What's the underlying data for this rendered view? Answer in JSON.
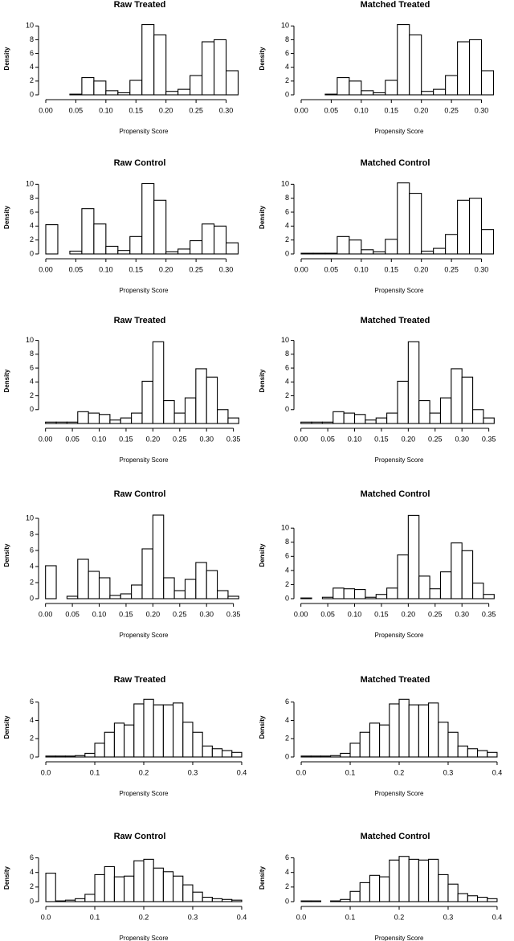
{
  "chart_data": [
    {
      "type": "histogram",
      "title": "Raw Treated",
      "xlabel": "Propensity Score",
      "ylabel": "Density",
      "bins": [
        0,
        0.02,
        0.04,
        0.06,
        0.08,
        0.1,
        0.12,
        0.14,
        0.16,
        0.18,
        0.2,
        0.22,
        0.24,
        0.26,
        0.28,
        0.3,
        0.32
      ],
      "values": [
        0,
        0,
        0.1,
        2.5,
        2,
        0.6,
        0.3,
        2.1,
        10.2,
        8.7,
        0.5,
        0.8,
        2.8,
        7.7,
        8,
        3.5
      ],
      "xlim": [
        -0.004,
        0.33
      ],
      "ylim": [
        0,
        10.5
      ],
      "xticks": [
        {
          "value": 0,
          "label": "0.00"
        },
        0.05,
        {
          "value": 0.1,
          "label": "0.10"
        },
        0.15,
        {
          "value": 0.2,
          "label": "0.20"
        },
        0.25,
        {
          "value": 0.3,
          "label": "0.30"
        }
      ],
      "yticks": [
        0,
        2,
        4,
        6,
        8,
        10
      ]
    },
    {
      "type": "histogram",
      "title": "Matched Treated",
      "xlabel": "Propensity Score",
      "ylabel": "Density",
      "bins": [
        0,
        0.02,
        0.04,
        0.06,
        0.08,
        0.1,
        0.12,
        0.14,
        0.16,
        0.18,
        0.2,
        0.22,
        0.24,
        0.26,
        0.28,
        0.3,
        0.32
      ],
      "values": [
        0,
        0,
        0.1,
        2.5,
        2,
        0.6,
        0.3,
        2.1,
        10.2,
        8.7,
        0.5,
        0.8,
        2.8,
        7.7,
        8,
        3.5
      ],
      "xlim": [
        -0.004,
        0.33
      ],
      "ylim": [
        0,
        10.5
      ],
      "xticks": [
        {
          "value": 0,
          "label": "0.00"
        },
        0.05,
        {
          "value": 0.1,
          "label": "0.10"
        },
        0.15,
        {
          "value": 0.2,
          "label": "0.20"
        },
        0.25,
        {
          "value": 0.3,
          "label": "0.30"
        }
      ],
      "yticks": [
        0,
        2,
        4,
        6,
        8,
        10
      ]
    },
    {
      "type": "histogram",
      "title": "Raw Control",
      "xlabel": "Propensity Score",
      "ylabel": "Density",
      "bins": [
        0,
        0.02,
        0.04,
        0.06,
        0.08,
        0.1,
        0.12,
        0.14,
        0.16,
        0.18,
        0.2,
        0.22,
        0.24,
        0.26,
        0.28,
        0.3,
        0.32
      ],
      "values": [
        4.2,
        0,
        0.4,
        6.5,
        4.3,
        1.1,
        0.5,
        2.5,
        10.1,
        7.7,
        0.3,
        0.7,
        1.9,
        4.3,
        4,
        1.6
      ],
      "xlim": [
        -0.004,
        0.33
      ],
      "ylim": [
        0,
        10.5
      ],
      "xticks": [
        {
          "value": 0,
          "label": "0.00"
        },
        0.05,
        {
          "value": 0.1,
          "label": "0.10"
        },
        0.15,
        {
          "value": 0.2,
          "label": "0.20"
        },
        0.25,
        {
          "value": 0.3,
          "label": "0.30"
        }
      ],
      "yticks": [
        0,
        2,
        4,
        6,
        8,
        10
      ]
    },
    {
      "type": "histogram",
      "title": "Matched Control",
      "xlabel": "Propensity Score",
      "ylabel": "Density",
      "bins": [
        0,
        0.02,
        0.04,
        0.06,
        0.08,
        0.1,
        0.12,
        0.14,
        0.16,
        0.18,
        0.2,
        0.22,
        0.24,
        0.26,
        0.28,
        0.3,
        0.32
      ],
      "values": [
        0.1,
        0.1,
        0.1,
        2.5,
        2,
        0.6,
        0.3,
        2.1,
        10.2,
        8.7,
        0.4,
        0.8,
        2.8,
        7.7,
        8,
        3.5
      ],
      "xlim": [
        -0.004,
        0.33
      ],
      "ylim": [
        0,
        10.5
      ],
      "xticks": [
        {
          "value": 0,
          "label": "0.00"
        },
        0.05,
        {
          "value": 0.1,
          "label": "0.10"
        },
        0.15,
        {
          "value": 0.2,
          "label": "0.20"
        },
        0.25,
        {
          "value": 0.3,
          "label": "0.30"
        }
      ],
      "yticks": [
        0,
        2,
        4,
        6,
        8,
        10
      ]
    },
    {
      "type": "histogram",
      "title": "Raw Treated",
      "xlabel": "Propensity Score",
      "ylabel": "Density",
      "bins": [
        0,
        0.02,
        0.04,
        0.06,
        0.08,
        0.1,
        0.12,
        0.14,
        0.16,
        0.18,
        0.2,
        0.22,
        0.24,
        0.26,
        0.28,
        0.3,
        0.32,
        0.34,
        0.36
      ],
      "values": [
        -1.8,
        -1.8,
        -1.8,
        -0.3,
        -0.5,
        -0.7,
        -1.5,
        -1.2,
        -0.5,
        4.1,
        9.8,
        1.3,
        -0.5,
        1.7,
        5.9,
        4.7,
        0,
        -1.2
      ],
      "xlim": [
        -0.004,
        0.37
      ],
      "ylim": [
        -2,
        10.3
      ],
      "xticks": [
        {
          "value": 0,
          "label": "0.00"
        },
        0.05,
        {
          "value": 0.1,
          "label": "0.10"
        },
        0.15,
        {
          "value": 0.2,
          "label": "0.20"
        },
        0.25,
        {
          "value": 0.3,
          "label": "0.30"
        },
        0.35
      ],
      "yticks": [
        0,
        2,
        4,
        6,
        8,
        10
      ]
    },
    {
      "type": "histogram",
      "title": "Matched Treated",
      "xlabel": "Propensity Score",
      "ylabel": "Density",
      "bins": [
        0,
        0.02,
        0.04,
        0.06,
        0.08,
        0.1,
        0.12,
        0.14,
        0.16,
        0.18,
        0.2,
        0.22,
        0.24,
        0.26,
        0.28,
        0.3,
        0.32,
        0.34,
        0.36
      ],
      "values": [
        -1.8,
        -1.8,
        -1.8,
        -0.3,
        -0.5,
        -0.7,
        -1.5,
        -1.2,
        -0.5,
        4.1,
        9.8,
        1.3,
        -0.5,
        1.7,
        5.9,
        4.7,
        0,
        -1.2
      ],
      "xlim": [
        -0.004,
        0.37
      ],
      "ylim": [
        -2,
        10.3
      ],
      "xticks": [
        {
          "value": 0,
          "label": "0.00"
        },
        0.05,
        {
          "value": 0.1,
          "label": "0.10"
        },
        0.15,
        {
          "value": 0.2,
          "label": "0.20"
        },
        0.25,
        {
          "value": 0.3,
          "label": "0.30"
        },
        0.35
      ],
      "yticks": [
        0,
        2,
        4,
        6,
        8,
        10
      ]
    },
    {
      "type": "histogram",
      "title": "Raw Control",
      "xlabel": "Propensity Score",
      "ylabel": "Density",
      "bins": [
        0,
        0.02,
        0.04,
        0.06,
        0.08,
        0.1,
        0.12,
        0.14,
        0.16,
        0.18,
        0.2,
        0.22,
        0.24,
        0.26,
        0.28,
        0.3,
        0.32,
        0.34,
        0.36
      ],
      "values": [
        4.1,
        0,
        0.3,
        4.9,
        3.4,
        2.6,
        0.4,
        0.6,
        1.7,
        6.2,
        10.4,
        2.6,
        1,
        2.4,
        4.5,
        3.5,
        1,
        0.3
      ],
      "xlim": [
        -0.004,
        0.37
      ],
      "ylim": [
        0,
        10.8
      ],
      "xticks": [
        {
          "value": 0,
          "label": "0.00"
        },
        0.05,
        {
          "value": 0.1,
          "label": "0.10"
        },
        0.15,
        {
          "value": 0.2,
          "label": "0.20"
        },
        0.25,
        {
          "value": 0.3,
          "label": "0.30"
        },
        0.35
      ],
      "yticks": [
        0,
        2,
        4,
        6,
        8,
        10
      ]
    },
    {
      "type": "histogram",
      "title": "Matched Control",
      "xlabel": "Propensity Score",
      "ylabel": "Density",
      "bins": [
        0,
        0.02,
        0.04,
        0.06,
        0.08,
        0.1,
        0.12,
        0.14,
        0.16,
        0.18,
        0.2,
        0.22,
        0.24,
        0.26,
        0.28,
        0.3,
        0.32,
        0.34,
        0.36
      ],
      "values": [
        0.1,
        0,
        0.2,
        1.5,
        1.4,
        1.3,
        0.2,
        0.6,
        1.5,
        6.2,
        11.8,
        3.2,
        1.4,
        3.8,
        7.9,
        6.8,
        2.2,
        0.6
      ],
      "xlim": [
        -0.004,
        0.37
      ],
      "ylim": [
        0,
        12.3
      ],
      "xticks": [
        {
          "value": 0,
          "label": "0.00"
        },
        0.05,
        {
          "value": 0.1,
          "label": "0.10"
        },
        0.15,
        {
          "value": 0.2,
          "label": "0.20"
        },
        0.25,
        {
          "value": 0.3,
          "label": "0.30"
        },
        0.35
      ],
      "yticks": [
        0,
        2,
        4,
        6,
        8,
        10
      ]
    },
    {
      "type": "histogram",
      "title": "Raw Treated",
      "xlabel": "Propensity Score",
      "ylabel": "Density",
      "bins": [
        0,
        0.02,
        0.04,
        0.06,
        0.08,
        0.1,
        0.12,
        0.14,
        0.16,
        0.18,
        0.2,
        0.22,
        0.24,
        0.26,
        0.28,
        0.3,
        0.32,
        0.34,
        0.36,
        0.38,
        0.4
      ],
      "values": [
        0.1,
        0.1,
        0.1,
        0.15,
        0.4,
        1.5,
        2.7,
        3.7,
        3.5,
        5.8,
        6.3,
        5.7,
        5.7,
        5.9,
        3.8,
        2.7,
        1.2,
        0.9,
        0.7,
        0.5
      ],
      "xlim": [
        -0.005,
        0.405
      ],
      "ylim": [
        0,
        6.5
      ],
      "xticks": [
        {
          "value": 0,
          "label": "0.0"
        },
        0.1,
        0.2,
        0.3,
        0.4
      ],
      "yticks": [
        0,
        2,
        4,
        6
      ]
    },
    {
      "type": "histogram",
      "title": "Matched Treated",
      "xlabel": "Propensity Score",
      "ylabel": "Density",
      "bins": [
        0,
        0.02,
        0.04,
        0.06,
        0.08,
        0.1,
        0.12,
        0.14,
        0.16,
        0.18,
        0.2,
        0.22,
        0.24,
        0.26,
        0.28,
        0.3,
        0.32,
        0.34,
        0.36,
        0.38,
        0.4
      ],
      "values": [
        0.1,
        0.1,
        0.1,
        0.15,
        0.4,
        1.5,
        2.7,
        3.7,
        3.5,
        5.8,
        6.3,
        5.7,
        5.7,
        5.9,
        3.8,
        2.7,
        1.2,
        0.9,
        0.7,
        0.5
      ],
      "xlim": [
        -0.005,
        0.405
      ],
      "ylim": [
        0,
        6.5
      ],
      "xticks": [
        {
          "value": 0,
          "label": "0.0"
        },
        0.1,
        0.2,
        0.3,
        0.4
      ],
      "yticks": [
        0,
        2,
        4,
        6
      ]
    },
    {
      "type": "histogram",
      "title": "Raw Control",
      "xlabel": "Propensity Score",
      "ylabel": "Density",
      "bins": [
        0,
        0.02,
        0.04,
        0.06,
        0.08,
        0.1,
        0.12,
        0.14,
        0.16,
        0.18,
        0.2,
        0.22,
        0.24,
        0.26,
        0.28,
        0.3,
        0.32,
        0.34,
        0.36,
        0.38,
        0.4
      ],
      "values": [
        3.9,
        0.1,
        0.2,
        0.4,
        1,
        3.7,
        4.8,
        3.4,
        3.5,
        5.6,
        5.8,
        4.6,
        4.1,
        3.5,
        2.3,
        1.3,
        0.6,
        0.4,
        0.3,
        0.2
      ],
      "xlim": [
        -0.005,
        0.405
      ],
      "ylim": [
        0,
        6.5
      ],
      "xticks": [
        {
          "value": 0,
          "label": "0.0"
        },
        0.1,
        0.2,
        0.3,
        0.4
      ],
      "yticks": [
        0,
        2,
        4,
        6
      ]
    },
    {
      "type": "histogram",
      "title": "Matched Control",
      "xlabel": "Propensity Score",
      "ylabel": "Density",
      "bins": [
        0,
        0.02,
        0.04,
        0.06,
        0.08,
        0.1,
        0.12,
        0.14,
        0.16,
        0.18,
        0.2,
        0.22,
        0.24,
        0.26,
        0.28,
        0.3,
        0.32,
        0.34,
        0.36,
        0.38,
        0.4
      ],
      "values": [
        0.1,
        0.1,
        0,
        0.1,
        0.3,
        1.4,
        2.6,
        3.6,
        3.4,
        5.7,
        6.2,
        5.8,
        5.7,
        5.8,
        3.7,
        2.4,
        1.1,
        0.8,
        0.6,
        0.4
      ],
      "xlim": [
        -0.005,
        0.405
      ],
      "ylim": [
        0,
        6.5
      ],
      "xticks": [
        {
          "value": 0,
          "label": "0.0"
        },
        0.1,
        0.2,
        0.3,
        0.4
      ],
      "yticks": [
        0,
        2,
        4,
        6
      ]
    }
  ]
}
